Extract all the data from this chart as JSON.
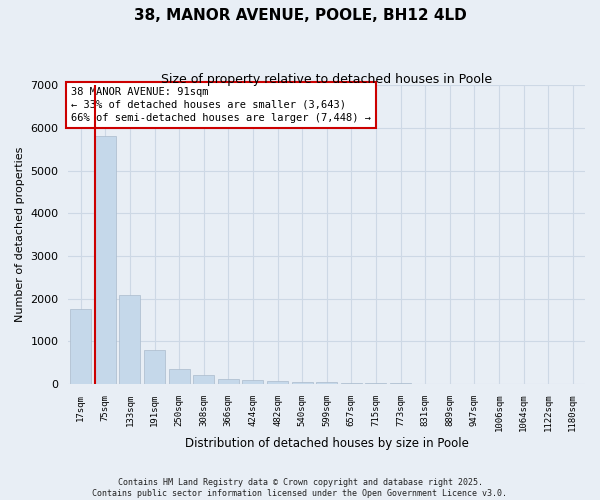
{
  "title1": "38, MANOR AVENUE, POOLE, BH12 4LD",
  "title2": "Size of property relative to detached houses in Poole",
  "xlabel": "Distribution of detached houses by size in Poole",
  "ylabel": "Number of detached properties",
  "bar_color": "#c5d8ea",
  "bar_edge_color": "#aabbcc",
  "categories": [
    "17sqm",
    "75sqm",
    "133sqm",
    "191sqm",
    "250sqm",
    "308sqm",
    "366sqm",
    "424sqm",
    "482sqm",
    "540sqm",
    "599sqm",
    "657sqm",
    "715sqm",
    "773sqm",
    "831sqm",
    "889sqm",
    "947sqm",
    "1006sqm",
    "1064sqm",
    "1122sqm",
    "1180sqm"
  ],
  "values": [
    1760,
    5820,
    2080,
    800,
    350,
    210,
    130,
    90,
    70,
    50,
    40,
    30,
    20,
    15,
    10,
    8,
    5,
    4,
    3,
    2,
    2
  ],
  "ylim": [
    0,
    7000
  ],
  "yticks": [
    0,
    1000,
    2000,
    3000,
    4000,
    5000,
    6000,
    7000
  ],
  "vline_x_index": 1,
  "annotation_title": "38 MANOR AVENUE: 91sqm",
  "annotation_line1": "← 33% of detached houses are smaller (3,643)",
  "annotation_line2": "66% of semi-detached houses are larger (7,448) →",
  "annotation_box_color": "#ffffff",
  "annotation_border_color": "#cc0000",
  "vline_color": "#cc0000",
  "grid_color": "#cdd8e5",
  "bg_color": "#e8eef5",
  "footer1": "Contains HM Land Registry data © Crown copyright and database right 2025.",
  "footer2": "Contains public sector information licensed under the Open Government Licence v3.0."
}
